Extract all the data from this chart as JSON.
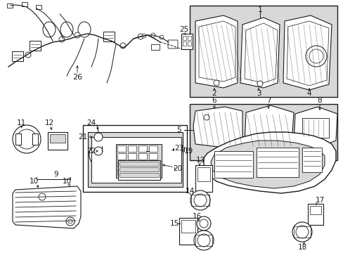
{
  "background_color": "#ffffff",
  "line_color": "#1a1a1a",
  "gray_fill": "#d8d8d8",
  "fig_width": 4.89,
  "fig_height": 3.6,
  "dpi": 100
}
